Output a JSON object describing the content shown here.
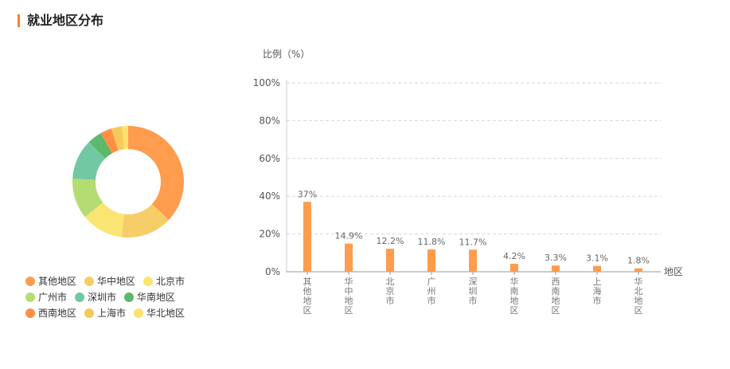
{
  "header": {
    "title": "就业地区分布",
    "accent_color": "#ff7f27"
  },
  "chart_data": [
    {
      "type": "pie",
      "variant": "donut",
      "title": "",
      "legend_position": "bottom-left",
      "categories": [
        "其他地区",
        "华中地区",
        "北京市",
        "广州市",
        "深圳市",
        "华南地区",
        "西南地区",
        "上海市",
        "华北地区"
      ],
      "values": [
        37,
        14.9,
        12.2,
        11.8,
        11.7,
        4.2,
        3.3,
        3.1,
        1.8
      ],
      "colors": [
        "#ff9c4d",
        "#f6cd67",
        "#fae573",
        "#b5dc73",
        "#71c8a2",
        "#5cb86a",
        "#ff8f45",
        "#f6c95d",
        "#fce36e"
      ]
    },
    {
      "type": "bar",
      "title": "",
      "ylabel": "比例（%）",
      "xlabel": "地区",
      "ylim": [
        0,
        100
      ],
      "yticks": [
        "0%",
        "20%",
        "40%",
        "60%",
        "80%",
        "100%"
      ],
      "grid": true,
      "bar_color": "#ff9c4d",
      "categories": [
        "其他地区",
        "华中地区",
        "北京市",
        "广州市",
        "深圳市",
        "华南地区",
        "西南地区",
        "上海市",
        "华北地区"
      ],
      "values": [
        37,
        14.9,
        12.2,
        11.8,
        11.7,
        4.2,
        3.3,
        3.1,
        1.8
      ],
      "data_labels": [
        "37%",
        "14.9%",
        "12.2%",
        "11.8%",
        "11.7%",
        "4.2%",
        "3.3%",
        "3.1%",
        "1.8%"
      ]
    }
  ]
}
